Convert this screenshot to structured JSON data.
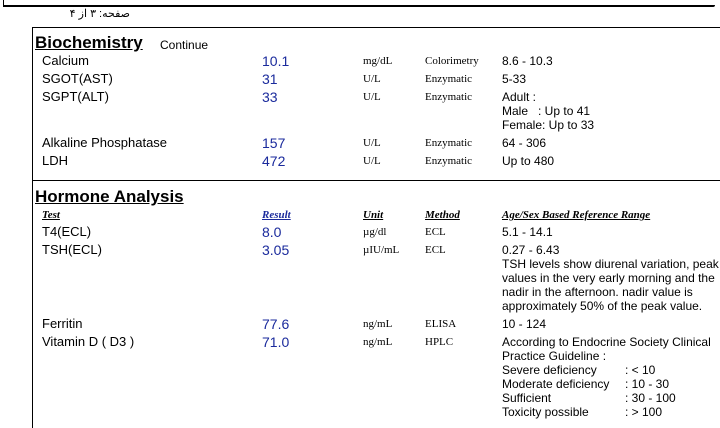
{
  "header": {
    "page_label": "صفحه: ۳ از ۴"
  },
  "sections": [
    {
      "title": "Biochemistry",
      "subtitle": "Continue",
      "rows": [
        {
          "test": "Calcium",
          "result": "10.1",
          "unit": "mg/dL",
          "method": "Colorimetry",
          "range": [
            "8.6 - 10.3"
          ]
        },
        {
          "test": "SGOT(AST)",
          "result": "31",
          "unit": "U/L",
          "method": "Enzymatic",
          "range": [
            "5-33"
          ]
        },
        {
          "test": "SGPT(ALT)",
          "result": "33",
          "unit": "U/L",
          "method": "Enzymatic",
          "range": [
            "Adult :",
            "Male   : Up to 41",
            "Female: Up to 33"
          ]
        },
        {
          "test": "Alkaline Phosphatase",
          "result": "157",
          "unit": "U/L",
          "method": "Enzymatic",
          "range": [
            "64 - 306"
          ]
        },
        {
          "test": "LDH",
          "result": "472",
          "unit": "U/L",
          "method": "Enzymatic",
          "range": [
            "Up to 480"
          ]
        }
      ]
    },
    {
      "title": "Hormone Analysis",
      "columns": [
        "Test",
        "Result",
        "Unit",
        "Method",
        "Age/Sex Based Reference Range"
      ],
      "rows": [
        {
          "test": "T4(ECL)",
          "result": "8.0",
          "unit": "µg/dl",
          "method": "ECL",
          "range": [
            "5.1 - 14.1"
          ]
        },
        {
          "test": "TSH(ECL)",
          "result": "3.05",
          "unit": "µIU/mL",
          "method": "ECL",
          "range": [
            "0.27 - 6.43",
            "TSH levels show diurenal variation, peak",
            "values in the very early morning and the",
            "nadir in the afternoon. nadir value is",
            "approximately 50% of the peak value."
          ]
        },
        {
          "test": "Ferritin",
          "result": "77.6",
          "unit": "ng/mL",
          "method": "ELISA",
          "range": [
            "10 - 124"
          ]
        },
        {
          "test": "Vitamin D ( D3 )",
          "result": "71.0",
          "unit": "ng/mL",
          "method": "HPLC",
          "range": [
            "According to Endocrine Society Clinical",
            "Practice Guideline :",
            {
              "label": "Severe deficiency",
              "value": ": < 10"
            },
            {
              "label": "Moderate deficiency",
              "value": ": 10 - 30"
            },
            {
              "label": "Sufficient",
              "value": ": 30 - 100"
            },
            {
              "label": "Toxicity possible",
              "value": ": > 100"
            }
          ]
        }
      ]
    }
  ]
}
